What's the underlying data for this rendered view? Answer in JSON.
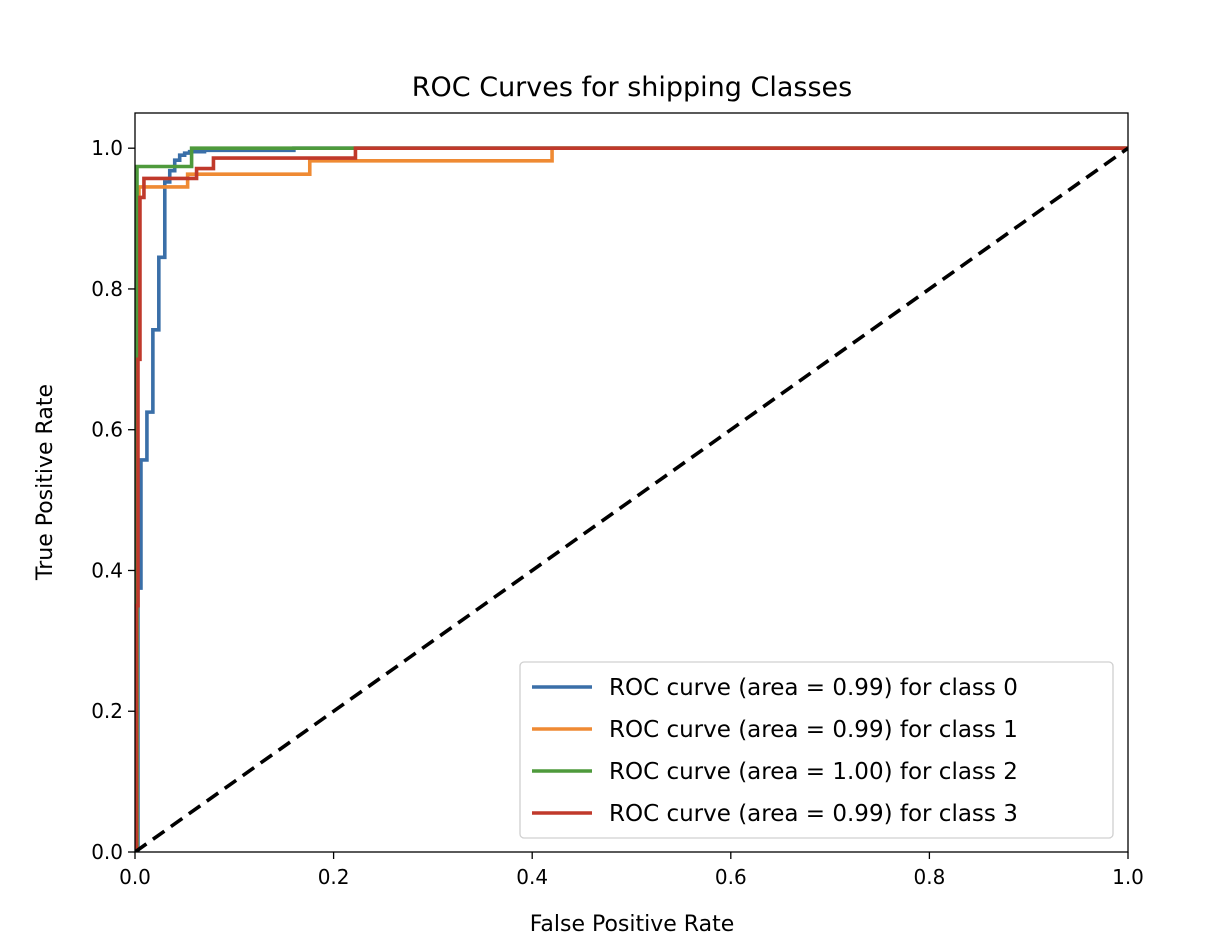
{
  "chart_data": {
    "type": "line",
    "title": "ROC Curves for shipping Classes",
    "xlabel": "False Positive Rate",
    "ylabel": "True Positive Rate",
    "xlim": [
      0.0,
      1.0
    ],
    "ylim": [
      0.0,
      1.05
    ],
    "xticks": [
      "0.0",
      "0.2",
      "0.4",
      "0.6",
      "0.8",
      "1.0"
    ],
    "yticks": [
      "0.0",
      "0.2",
      "0.4",
      "0.6",
      "0.8",
      "1.0"
    ],
    "grid": false,
    "legend_position": "lower-right",
    "diagonal": {
      "x": [
        0,
        1
      ],
      "y": [
        0,
        1
      ],
      "color": "#000000",
      "style": "dashed"
    },
    "series": [
      {
        "name": "ROC curve (area = 0.99) for class 0",
        "color": "#3a6fa8",
        "x": [
          0,
          0.003,
          0.003,
          0.006,
          0.006,
          0.012,
          0.012,
          0.018,
          0.018,
          0.024,
          0.024,
          0.03,
          0.03,
          0.035,
          0.035,
          0.04,
          0.04,
          0.045,
          0.045,
          0.05,
          0.05,
          0.055,
          0.055,
          0.07,
          0.07,
          0.16,
          0.16,
          1.0
        ],
        "y": [
          0,
          0.0,
          0.375,
          0.375,
          0.557,
          0.557,
          0.625,
          0.625,
          0.742,
          0.742,
          0.845,
          0.845,
          0.952,
          0.952,
          0.968,
          0.968,
          0.983,
          0.983,
          0.99,
          0.99,
          0.993,
          0.993,
          0.995,
          0.995,
          0.997,
          0.997,
          1.0,
          1.0
        ]
      },
      {
        "name": "ROC curve (area = 0.99) for class 1",
        "color": "#ef8a33",
        "x": [
          0,
          0.002,
          0.002,
          0.004,
          0.004,
          0.01,
          0.01,
          0.053,
          0.053,
          0.176,
          0.176,
          0.42,
          0.42,
          1.0
        ],
        "y": [
          0,
          0.0,
          0.93,
          0.93,
          0.945,
          0.945,
          0.945,
          0.945,
          0.963,
          0.963,
          0.982,
          0.982,
          1.0,
          1.0
        ]
      },
      {
        "name": "ROC curve (area = 1.00) for class 2",
        "color": "#4e9a3c",
        "x": [
          0,
          0.002,
          0.002,
          0.002,
          0.002,
          0.028,
          0.028,
          0.057,
          0.057,
          0.22,
          0.22,
          1.0
        ],
        "y": [
          0,
          0.0,
          0.958,
          0.958,
          0.974,
          0.974,
          0.974,
          0.974,
          1.0,
          1.0,
          1.0,
          1.0
        ]
      },
      {
        "name": "ROC curve (area = 0.99) for class 3",
        "color": "#c0392b",
        "x": [
          0,
          0.0015,
          0.0015,
          0.003,
          0.003,
          0.005,
          0.005,
          0.009,
          0.009,
          0.062,
          0.062,
          0.079,
          0.079,
          0.222,
          0.222,
          0.6,
          1.0
        ],
        "y": [
          0,
          0.0,
          0.35,
          0.35,
          0.7,
          0.7,
          0.93,
          0.93,
          0.957,
          0.957,
          0.971,
          0.971,
          0.986,
          0.986,
          1.0,
          1.0,
          1.0
        ]
      }
    ]
  }
}
